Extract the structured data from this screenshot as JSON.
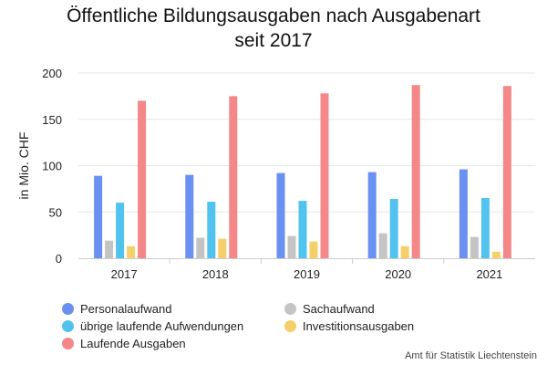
{
  "chart_data": {
    "type": "bar",
    "title_line1": "Öffentliche Bildungsausgaben nach Ausgabenart",
    "title_line2": "seit 2017",
    "ylabel": "in Mio. CHF",
    "xlabel": "",
    "ylim": [
      0,
      200
    ],
    "yticks": [
      0,
      50,
      100,
      150,
      200
    ],
    "grid": true,
    "legend_position": "bottom-left",
    "categories": [
      "2017",
      "2018",
      "2019",
      "2020",
      "2021"
    ],
    "series": [
      {
        "name": "Personalaufwand",
        "color": "#6a91f2",
        "values": [
          89,
          90,
          92,
          93,
          96
        ]
      },
      {
        "name": "Sachaufwand",
        "color": "#c4c4c4",
        "values": [
          19,
          22,
          24,
          27,
          23
        ]
      },
      {
        "name": "übrige laufende Aufwendungen",
        "color": "#52c3ee",
        "values": [
          60,
          61,
          62,
          64,
          65
        ]
      },
      {
        "name": "Investitionsausgaben",
        "color": "#f5d06a",
        "values": [
          13,
          21,
          18,
          13,
          7
        ]
      },
      {
        "name": "Laufende Ausgaben",
        "color": "#f48888",
        "values": [
          170,
          175,
          178,
          187,
          186
        ]
      }
    ],
    "legend_columns": [
      [
        "Personalaufwand",
        "übrige laufende Aufwendungen",
        "Laufende Ausgaben"
      ],
      [
        "Sachaufwand",
        "Investitionsausgaben"
      ]
    ]
  },
  "credits": "Amt für Statistik Liechtenstein"
}
